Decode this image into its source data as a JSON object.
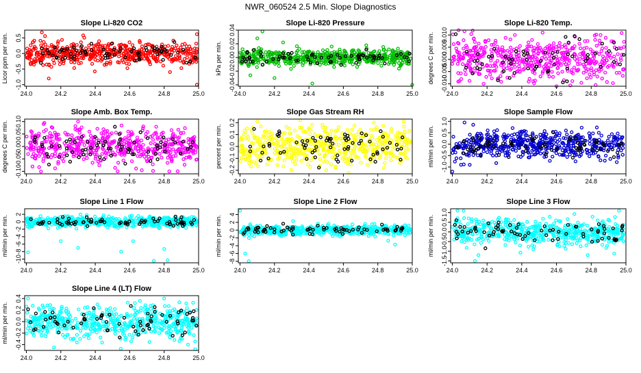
{
  "page_title": "NWR_060524  2.5 Min. Slope Diagnostics",
  "chart_data": [
    {
      "type": "scatter",
      "title": "Slope Li-820 CO2",
      "ylabel": "Licor ppm per min.",
      "color": "#ff0000",
      "xlim": [
        23.99,
        25.0
      ],
      "ylim": [
        -1.05,
        0.75
      ],
      "xticks": [
        24.0,
        24.2,
        24.4,
        24.6,
        24.8,
        25.0
      ],
      "xtick_labels": [
        "24.0",
        "24.2",
        "24.4",
        "24.6",
        "24.8",
        "25.0"
      ],
      "yticks": [
        -1.0,
        -0.5,
        0.0,
        0.5
      ],
      "ytick_labels": [
        "-1.0",
        "-0.5",
        "0.0",
        "0.5"
      ],
      "n_points": 520,
      "n_black": 70,
      "spread": 0.17,
      "center": 0.0,
      "outliers": [
        [
          24.09,
          0.68
        ],
        [
          24.13,
          -0.8
        ],
        [
          24.33,
          0.58
        ],
        [
          24.99,
          -1.0
        ],
        [
          24.99,
          0.62
        ]
      ]
    },
    {
      "type": "scatter",
      "title": "Slope Li-820 Pressure",
      "ylabel": "kPa per min.",
      "color": "#00bb00",
      "xlim": [
        23.99,
        25.0
      ],
      "ylim": [
        -0.042,
        0.04
      ],
      "xticks": [
        24.0,
        24.2,
        24.4,
        24.6,
        24.8,
        25.0
      ],
      "xtick_labels": [
        "24.0",
        "24.2",
        "24.4",
        "24.6",
        "24.8",
        "25.0"
      ],
      "yticks": [
        -0.04,
        -0.02,
        0.0,
        0.02,
        0.04
      ],
      "ytick_labels": [
        "-0.04",
        "-0.02",
        "0.00",
        "0.02",
        "0.04"
      ],
      "n_points": 520,
      "n_black": 70,
      "spread": 0.006,
      "center": 0.0,
      "outliers": [
        [
          24.13,
          0.038
        ],
        [
          24.06,
          -0.026
        ],
        [
          24.25,
          0.022
        ],
        [
          24.2,
          -0.03
        ],
        [
          24.42,
          -0.038
        ],
        [
          25.0,
          -0.04
        ],
        [
          24.1,
          0.028
        ]
      ]
    },
    {
      "type": "scatter",
      "title": "Slope Li-820 Temp.",
      "ylabel": "degrees C per min.",
      "color": "#ff00ff",
      "xlim": [
        23.99,
        25.0
      ],
      "ylim": [
        -0.011,
        0.012
      ],
      "xticks": [
        24.0,
        24.2,
        24.4,
        24.6,
        24.8,
        25.0
      ],
      "xtick_labels": [
        "24.0",
        "24.2",
        "24.4",
        "24.6",
        "24.8",
        "25.0"
      ],
      "yticks": [
        -0.01,
        -0.005,
        0.0,
        0.005,
        0.01
      ],
      "ytick_labels": [
        "-0.010",
        "-0.005",
        "0.000",
        "0.005",
        "0.010"
      ],
      "n_points": 500,
      "n_black": 60,
      "spread": 0.0045,
      "center": 0.0,
      "outliers": [
        [
          24.52,
          0.011
        ],
        [
          24.18,
          -0.01
        ],
        [
          24.6,
          -0.011
        ],
        [
          24.36,
          0.01
        ]
      ]
    },
    {
      "type": "scatter",
      "title": "Slope Amb. Box Temp.",
      "ylabel": "degrees C per min.",
      "color": "#ff00ff",
      "xlim": [
        23.99,
        25.0
      ],
      "ylim": [
        -0.11,
        0.11
      ],
      "xticks": [
        24.0,
        24.2,
        24.4,
        24.6,
        24.8,
        25.0
      ],
      "xtick_labels": [
        "24.0",
        "24.2",
        "24.4",
        "24.6",
        "24.8",
        "25.0"
      ],
      "yticks": [
        -0.1,
        -0.05,
        0.0,
        0.05,
        0.1
      ],
      "ytick_labels": [
        "-0.10",
        "-0.05",
        "0.00",
        "0.05",
        "0.10"
      ],
      "n_points": 520,
      "n_black": 70,
      "spread": 0.035,
      "center": 0.0,
      "outliers": [
        [
          24.3,
          0.1
        ],
        [
          24.53,
          -0.1
        ],
        [
          24.83,
          -0.1
        ],
        [
          24.1,
          0.09
        ]
      ]
    },
    {
      "type": "scatter",
      "title": "Slope Gas Stream RH",
      "ylabel": "percent per min.",
      "color": "#ffff00",
      "xlim": [
        23.99,
        25.0
      ],
      "ylim": [
        -0.23,
        0.23
      ],
      "xticks": [
        24.0,
        24.2,
        24.4,
        24.6,
        24.8,
        25.0
      ],
      "xtick_labels": [
        "24.0",
        "24.2",
        "24.4",
        "24.6",
        "24.8",
        "25.0"
      ],
      "yticks": [
        -0.2,
        -0.1,
        0.0,
        0.1,
        0.2
      ],
      "ytick_labels": [
        "-0.2",
        "-0.1",
        "0.0",
        "0.1",
        "0.2"
      ],
      "n_points": 520,
      "n_black": 70,
      "spread": 0.08,
      "center": 0.0,
      "outliers": [
        [
          24.1,
          0.21
        ],
        [
          24.35,
          0.22
        ],
        [
          24.5,
          -0.2
        ],
        [
          24.95,
          0.21
        ]
      ]
    },
    {
      "type": "scatter",
      "title": "Slope Sample Flow",
      "ylabel": "ml/min per min.",
      "color": "#0000cc",
      "xlim": [
        23.99,
        25.0
      ],
      "ylim": [
        -1.3,
        1.1
      ],
      "xticks": [
        24.0,
        24.2,
        24.4,
        24.6,
        24.8,
        25.0
      ],
      "xtick_labels": [
        "24.0",
        "24.2",
        "24.4",
        "24.6",
        "24.8",
        "25.0"
      ],
      "yticks": [
        -1.0,
        -0.5,
        0.0,
        0.5,
        1.0
      ],
      "ytick_labels": [
        "-1.0",
        "-0.5",
        "0.0",
        "0.5",
        "1.0"
      ],
      "n_points": 520,
      "n_black": 70,
      "spread": 0.28,
      "center": 0.0,
      "outliers": [
        [
          24.0,
          -1.2
        ],
        [
          24.07,
          0.95
        ],
        [
          24.12,
          0.85
        ],
        [
          24.05,
          -0.9
        ]
      ]
    },
    {
      "type": "scatter",
      "title": "Slope Line 1 Flow",
      "ylabel": "ml/min per min.",
      "color": "#00ffff",
      "xlim": [
        23.99,
        25.0
      ],
      "ylim": [
        -11,
        3.5
      ],
      "xticks": [
        24.0,
        24.2,
        24.4,
        24.6,
        24.8,
        25.0
      ],
      "xtick_labels": [
        "24.0",
        "24.2",
        "24.4",
        "24.6",
        "24.8",
        "25.0"
      ],
      "yticks": [
        -10,
        -8,
        -6,
        -4,
        -2,
        0,
        2
      ],
      "ytick_labels": [
        "-10",
        "-8",
        "-6",
        "-4",
        "-2",
        "0",
        "2"
      ],
      "n_points": 520,
      "n_black": 70,
      "spread": 0.7,
      "center": 0.0,
      "outliers": [
        [
          24.01,
          -8.2
        ],
        [
          24.2,
          -5.2
        ],
        [
          24.62,
          -5.2
        ],
        [
          24.3,
          -7.0
        ],
        [
          24.55,
          -8.0
        ],
        [
          24.74,
          -10.5
        ],
        [
          24.8,
          -7.3
        ],
        [
          24.82,
          -10.3
        ]
      ]
    },
    {
      "type": "scatter",
      "title": "Slope Line 2 Flow",
      "ylabel": "ml/min per min.",
      "color": "#00ffff",
      "xlim": [
        23.99,
        25.0
      ],
      "ylim": [
        -8.4,
        5.5
      ],
      "xticks": [
        24.0,
        24.2,
        24.4,
        24.6,
        24.8,
        25.0
      ],
      "xtick_labels": [
        "24.0",
        "24.2",
        "24.4",
        "24.6",
        "24.8",
        "25.0"
      ],
      "yticks": [
        -8,
        -6,
        -4,
        -2,
        0,
        2,
        4
      ],
      "ytick_labels": [
        "-8",
        "-6",
        "-4",
        "-2",
        "0",
        "2",
        "4"
      ],
      "n_points": 520,
      "n_black": 70,
      "spread": 0.6,
      "center": 0.0,
      "outliers": [
        [
          24.0,
          5.0
        ],
        [
          24.03,
          -6.0
        ],
        [
          24.05,
          -8.0
        ],
        [
          24.9,
          -3.7
        ],
        [
          24.86,
          -2.7
        ]
      ]
    },
    {
      "type": "scatter",
      "title": "Slope Line 3 Flow",
      "ylabel": "ml/min per min.",
      "color": "#00ffff",
      "xlim": [
        23.99,
        25.0
      ],
      "ylim": [
        -1.6,
        1.2
      ],
      "xticks": [
        24.0,
        24.2,
        24.4,
        24.6,
        24.8,
        25.0
      ],
      "xtick_labels": [
        "24.0",
        "24.2",
        "24.4",
        "24.6",
        "24.8",
        "25.0"
      ],
      "yticks": [
        -1.5,
        -1.0,
        -0.5,
        0.0,
        0.5,
        1.0
      ],
      "ytick_labels": [
        "-1.5",
        "-1.0",
        "-0.5",
        "0.0",
        "0.5",
        "1.0"
      ],
      "n_points": 520,
      "n_black": 70,
      "spread": 0.35,
      "center": 0.0,
      "outliers": [
        [
          24.03,
          1.1
        ],
        [
          24.13,
          -1.5
        ],
        [
          24.15,
          -1.2
        ],
        [
          24.96,
          1.1
        ],
        [
          24.78,
          -1.2
        ]
      ]
    },
    {
      "type": "scatter",
      "title": "Slope Line 4 (LT) Flow",
      "ylabel": "ml/min per min.",
      "color": "#00ffff",
      "xlim": [
        23.99,
        25.0
      ],
      "ylim": [
        -0.5,
        0.45
      ],
      "xticks": [
        24.0,
        24.2,
        24.4,
        24.6,
        24.8,
        25.0
      ],
      "xtick_labels": [
        "24.0",
        "24.2",
        "24.4",
        "24.6",
        "24.8",
        "25.0"
      ],
      "yticks": [
        -0.4,
        -0.2,
        0.0,
        0.2,
        0.4
      ],
      "ytick_labels": [
        "-0.4",
        "-0.2",
        "0.0",
        "0.2",
        "0.4"
      ],
      "n_points": 520,
      "n_black": 70,
      "spread": 0.14,
      "center": 0.0,
      "outliers": [
        [
          24.01,
          0.4
        ],
        [
          24.16,
          -0.45
        ],
        [
          24.98,
          -0.48
        ],
        [
          24.8,
          0.4
        ],
        [
          24.63,
          0.32
        ]
      ]
    }
  ]
}
